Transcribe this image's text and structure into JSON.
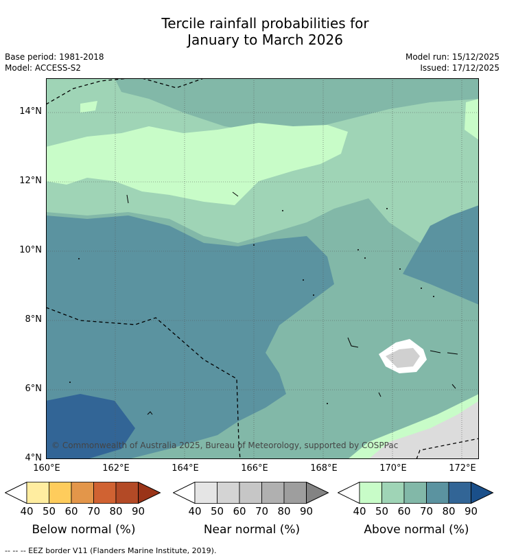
{
  "title": {
    "line1": "Tercile rainfall probabilities for",
    "line2": "January to March 2026"
  },
  "meta": {
    "base_period": "Base period: 1981-2018",
    "model": "Model: ACCESS-S2",
    "model_run": "Model run: 15/12/2025",
    "issued": "Issued: 17/12/2025"
  },
  "map": {
    "lat_labels": [
      "14°N",
      "12°N",
      "10°N",
      "8°N",
      "6°N",
      "4°N"
    ],
    "lon_labels": [
      "160°E",
      "162°E",
      "164°E",
      "166°E",
      "168°E",
      "170°E",
      "172°E"
    ],
    "copyright": "© Commonwealth of Australia 2025, Bureau of Meteorology, supported by COSPPac",
    "region": {
      "lon_min": 160,
      "lon_max": 172.5,
      "lat_min": 4,
      "lat_max": 15
    }
  },
  "colorbars": [
    {
      "title": "Below normal (%)",
      "ticks": [
        "40",
        "50",
        "60",
        "70",
        "80",
        "90"
      ],
      "colors": [
        "#ffeda0",
        "#fecc5c",
        "#e3964a",
        "#d06232",
        "#b34a26",
        "#9a3418"
      ]
    },
    {
      "title": "Near normal (%)",
      "ticks": [
        "40",
        "50",
        "60",
        "70",
        "80",
        "90"
      ],
      "colors": [
        "#e5e5e5",
        "#d4d4d4",
        "#c6c6c6",
        "#b0b0b0",
        "#9e9e9e",
        "#838383"
      ]
    },
    {
      "title": "Above normal (%)",
      "ticks": [
        "40",
        "50",
        "60",
        "70",
        "80",
        "90"
      ],
      "colors": [
        "#c8fcc8",
        "#9fd4b6",
        "#82b8a8",
        "#5b93a0",
        "#326596",
        "#1a4f8a"
      ]
    }
  ],
  "footnote": "--  --  -- EEZ border V11 (Flanders Marine Institute, 2019)."
}
